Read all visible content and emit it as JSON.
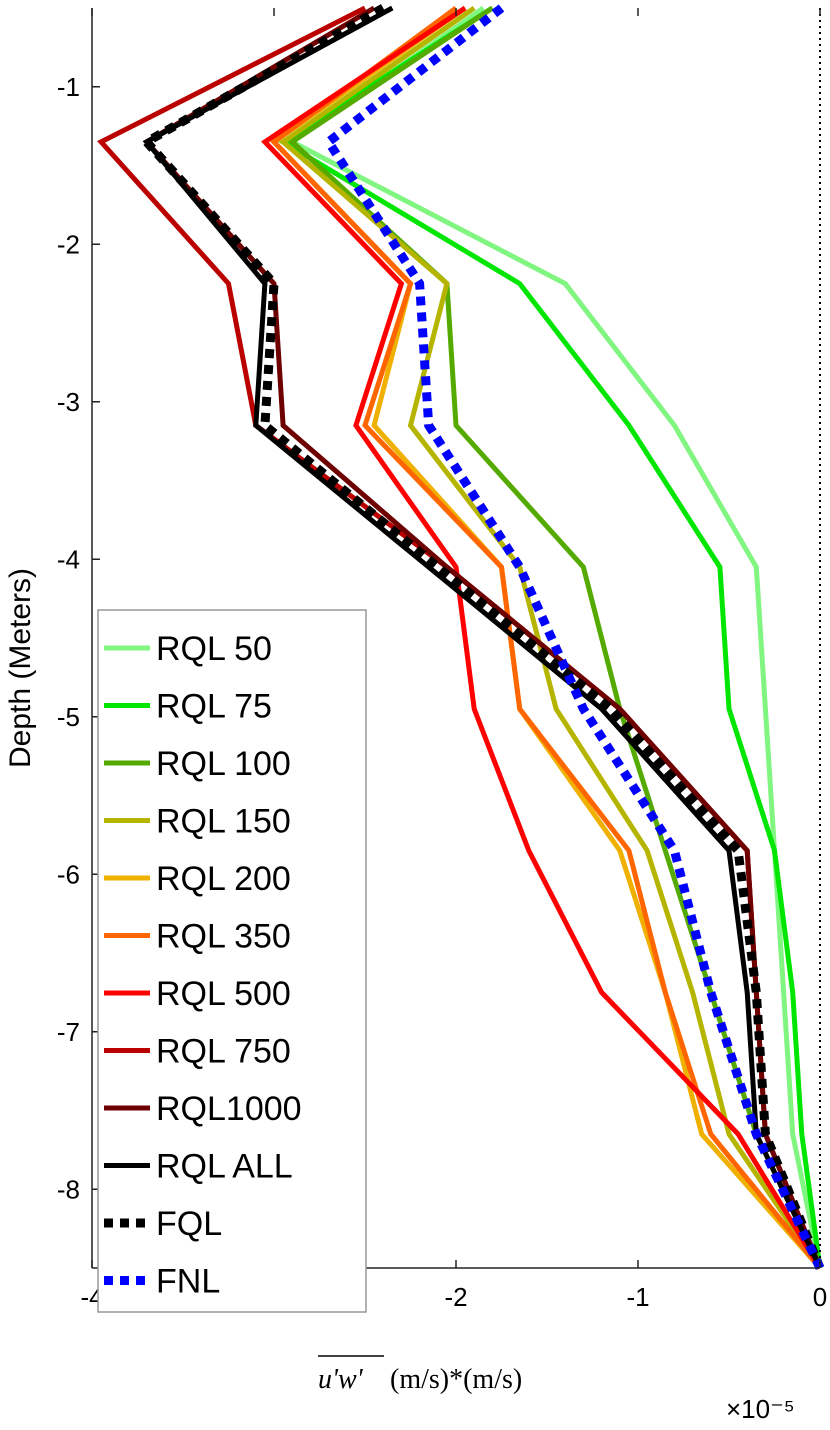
{
  "chart_data": {
    "type": "line",
    "title": "",
    "ylabel": "Depth (Meters)",
    "xlabel": {
      "main": "u'w'",
      "units": "(m/s)*(m/s)",
      "exponent": "×10⁻⁵"
    },
    "xlim": [
      -4,
      0
    ],
    "ylim": [
      -8.5,
      -0.5
    ],
    "xticks": [
      -4,
      -3,
      -2,
      -1,
      0
    ],
    "xtick_labels": [
      "-4",
      "-3",
      "-2",
      "-1",
      "0"
    ],
    "yticks": [
      -8,
      -7,
      -6,
      -5,
      -4,
      -3,
      -2,
      -1
    ],
    "ytick_labels": [
      "-8",
      "-7",
      "-6",
      "-5",
      "-4",
      "-3",
      "-2",
      "-1"
    ],
    "x_multiplier": "1e-5",
    "reference_line": {
      "x": 0,
      "style": "dotted"
    },
    "legend_position": "lower-left",
    "grid": false,
    "depths": [
      -0.5,
      -1.35,
      -2.25,
      -3.15,
      -4.05,
      -4.95,
      -5.85,
      -6.75,
      -7.65,
      -8.5
    ],
    "series": [
      {
        "name": "RQL 50",
        "color": "#80f580",
        "dash": "solid",
        "values": [
          -1.85,
          -2.9,
          -1.4,
          -0.8,
          -0.35,
          -0.3,
          -0.25,
          -0.2,
          -0.15,
          0
        ]
      },
      {
        "name": "RQL 75",
        "color": "#00e600",
        "dash": "solid",
        "values": [
          -1.8,
          -2.95,
          -1.65,
          -1.05,
          -0.55,
          -0.5,
          -0.25,
          -0.15,
          -0.1,
          0
        ]
      },
      {
        "name": "RQL 100",
        "color": "#55aa00",
        "dash": "solid",
        "values": [
          -1.8,
          -2.9,
          -2.05,
          -2.0,
          -1.3,
          -1.1,
          -0.85,
          -0.6,
          -0.35,
          0
        ]
      },
      {
        "name": "RQL 150",
        "color": "#b5b500",
        "dash": "solid",
        "values": [
          -1.9,
          -2.95,
          -2.05,
          -2.25,
          -1.65,
          -1.45,
          -0.95,
          -0.7,
          -0.5,
          0
        ]
      },
      {
        "name": "RQL 200",
        "color": "#f0b000",
        "dash": "solid",
        "values": [
          -1.95,
          -3.0,
          -2.25,
          -2.45,
          -1.75,
          -1.65,
          -1.1,
          -0.85,
          -0.65,
          0
        ]
      },
      {
        "name": "RQL 350",
        "color": "#ff6600",
        "dash": "solid",
        "values": [
          -2.0,
          -3.0,
          -2.25,
          -2.5,
          -1.75,
          -1.65,
          -1.05,
          -0.85,
          -0.6,
          0
        ]
      },
      {
        "name": "RQL 500",
        "color": "#ff0000",
        "dash": "solid",
        "values": [
          -1.95,
          -3.05,
          -2.3,
          -2.55,
          -2.0,
          -1.9,
          -1.6,
          -1.2,
          -0.45,
          0
        ]
      },
      {
        "name": "RQL 750",
        "color": "#bb0000",
        "dash": "solid",
        "values": [
          -2.5,
          -3.95,
          -3.25,
          -3.1,
          -2.05,
          -1.1,
          -0.4,
          -0.35,
          -0.3,
          0
        ]
      },
      {
        "name": "RQL1000",
        "color": "#6e0000",
        "dash": "solid",
        "values": [
          -2.45,
          -3.7,
          -3.0,
          -2.95,
          -2.05,
          -1.1,
          -0.4,
          -0.35,
          -0.3,
          0
        ]
      },
      {
        "name": "RQL ALL",
        "color": "#000000",
        "dash": "solid",
        "values": [
          -2.35,
          -3.7,
          -3.05,
          -3.1,
          -2.15,
          -1.2,
          -0.5,
          -0.4,
          -0.35,
          0
        ]
      },
      {
        "name": "FQL",
        "color": "#000000",
        "dash": "dotted",
        "values": [
          -2.4,
          -3.7,
          -3.0,
          -3.05,
          -2.1,
          -1.15,
          -0.45,
          -0.35,
          -0.3,
          0
        ]
      },
      {
        "name": "FNL",
        "color": "#0000ff",
        "dash": "dotted",
        "values": [
          -1.75,
          -2.7,
          -2.2,
          -2.15,
          -1.65,
          -1.3,
          -0.8,
          -0.6,
          -0.35,
          0
        ]
      }
    ]
  }
}
